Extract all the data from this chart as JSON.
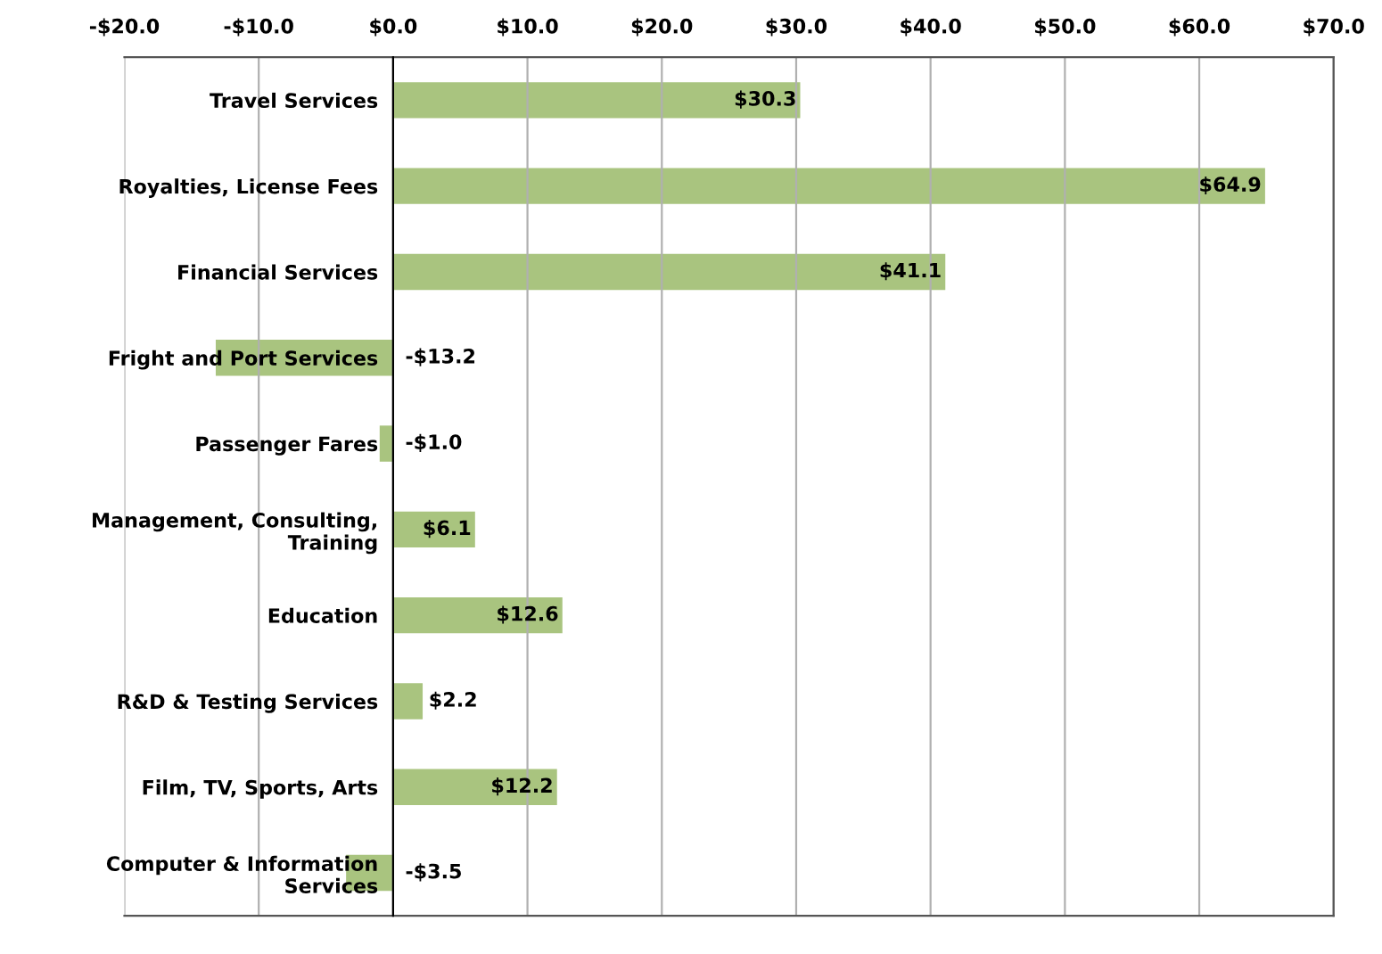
{
  "chart_data": {
    "type": "bar",
    "orientation": "horizontal",
    "categories": [
      "Travel Services",
      "Royalties, License Fees",
      "Financial Services",
      "Fright and Port Services",
      "Passenger Fares",
      "Management, Consulting,\nTraining",
      "Education",
      "R&D & Testing Services",
      "Film, TV, Sports, Arts",
      "Computer & Information\nServices"
    ],
    "values": [
      30.3,
      64.9,
      41.1,
      -13.2,
      -1.0,
      6.1,
      12.6,
      2.2,
      12.2,
      -3.5
    ],
    "value_labels": [
      "$30.3",
      "$64.9",
      "$41.1",
      "-$13.2",
      "-$1.0",
      "$6.1",
      "$12.6",
      "$2.2",
      "$12.2",
      "-$3.5"
    ],
    "color": "#a9c47f",
    "xlim": [
      -20,
      70
    ],
    "xticks": [
      {
        "value": -20,
        "label": "-$20.0"
      },
      {
        "value": -10,
        "label": "-$10.0"
      },
      {
        "value": 0,
        "label": "$0.0"
      },
      {
        "value": 10,
        "label": "$10.0"
      },
      {
        "value": 20,
        "label": "$20.0"
      },
      {
        "value": 30,
        "label": "$30.0"
      },
      {
        "value": 40,
        "label": "$40.0"
      },
      {
        "value": 50,
        "label": "$50.0"
      },
      {
        "value": 60,
        "label": "$60.0"
      },
      {
        "value": 70,
        "label": "$70.0"
      }
    ],
    "grid": "x",
    "legend": false
  }
}
